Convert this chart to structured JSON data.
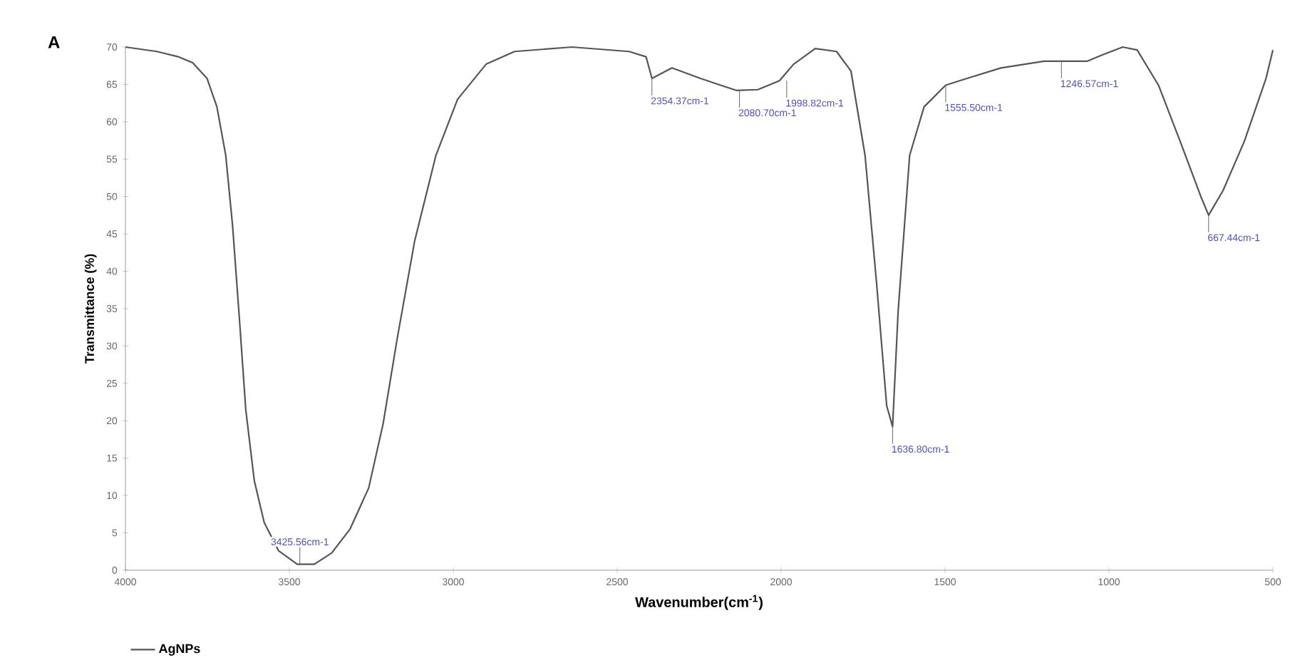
{
  "chart_data": {
    "type": "line",
    "title": "A",
    "xlabel": "Wavenumber(cm$^{-1}$)",
    "ylabel": "Transmittance (%)",
    "xlim": [
      4000,
      500
    ],
    "ylim": [
      0,
      70
    ],
    "xticks": [
      4000,
      3500,
      3000,
      2500,
      2000,
      1500,
      1000,
      500
    ],
    "yticks": [
      0,
      5,
      10,
      15,
      20,
      25,
      30,
      35,
      40,
      45,
      50,
      55,
      60,
      65,
      70
    ],
    "legend": "bottom left",
    "grid": false,
    "marker": "none",
    "line_style": "solid",
    "series": [
      {
        "name": "AgNPs",
        "color": "#555555",
        "x": [
          4000,
          3904,
          3839,
          3795,
          3751,
          3721,
          3694,
          3673,
          3651,
          3633,
          3607,
          3577,
          3533,
          3476,
          3424,
          3371,
          3315,
          3258,
          3214,
          3171,
          3118,
          3053,
          2987,
          2900,
          2813,
          2638,
          2464,
          2412,
          2394,
          2368,
          2333,
          2246,
          2137,
          2071,
          2005,
          1962,
          1896,
          1831,
          1787,
          1744,
          1709,
          1678,
          1660,
          1643,
          1608,
          1564,
          1498,
          1433,
          1330,
          1198,
          1067,
          1023,
          958,
          914,
          849,
          783,
          718,
          696,
          652,
          587,
          521,
          500
        ],
        "values": [
          70,
          69.4,
          68.7,
          67.9,
          65.8,
          62,
          55.5,
          46,
          32.8,
          21.5,
          12,
          6.4,
          2.6,
          0.8,
          0.8,
          2.3,
          5.5,
          11,
          19.6,
          31,
          44,
          55.5,
          63,
          67.7,
          69.4,
          70,
          69.4,
          68.7,
          65.8,
          66.4,
          67.2,
          65.8,
          64.2,
          64.3,
          65.5,
          67.7,
          69.8,
          69.4,
          66.8,
          55.5,
          38.5,
          22,
          19.2,
          34.7,
          55.5,
          62,
          64.9,
          65.8,
          67.2,
          68.1,
          68.1,
          68.9,
          70,
          69.6,
          64.9,
          57.4,
          49.8,
          47.5,
          50.8,
          57.4,
          65.8,
          69.6
        ]
      }
    ],
    "annotations": [
      {
        "text": "3425.56cm-1",
        "x": 3468,
        "y": 0.8
      },
      {
        "text": "2354.37cm-1",
        "x": 2394,
        "y": 65.8
      },
      {
        "text": "2080.70cm-1",
        "x": 2127,
        "y": 64.2
      },
      {
        "text": "1998.82cm-1",
        "x": 1983,
        "y": 65.5
      },
      {
        "text": "1636.80cm-1",
        "x": 1660,
        "y": 19.2
      },
      {
        "text": "1555.50cm-1",
        "x": 1498,
        "y": 64.9
      },
      {
        "text": "1246.57cm-1",
        "x": 1145,
        "y": 68.1
      },
      {
        "text": "667.44cm-1",
        "x": 696,
        "y": 47.5
      }
    ]
  }
}
